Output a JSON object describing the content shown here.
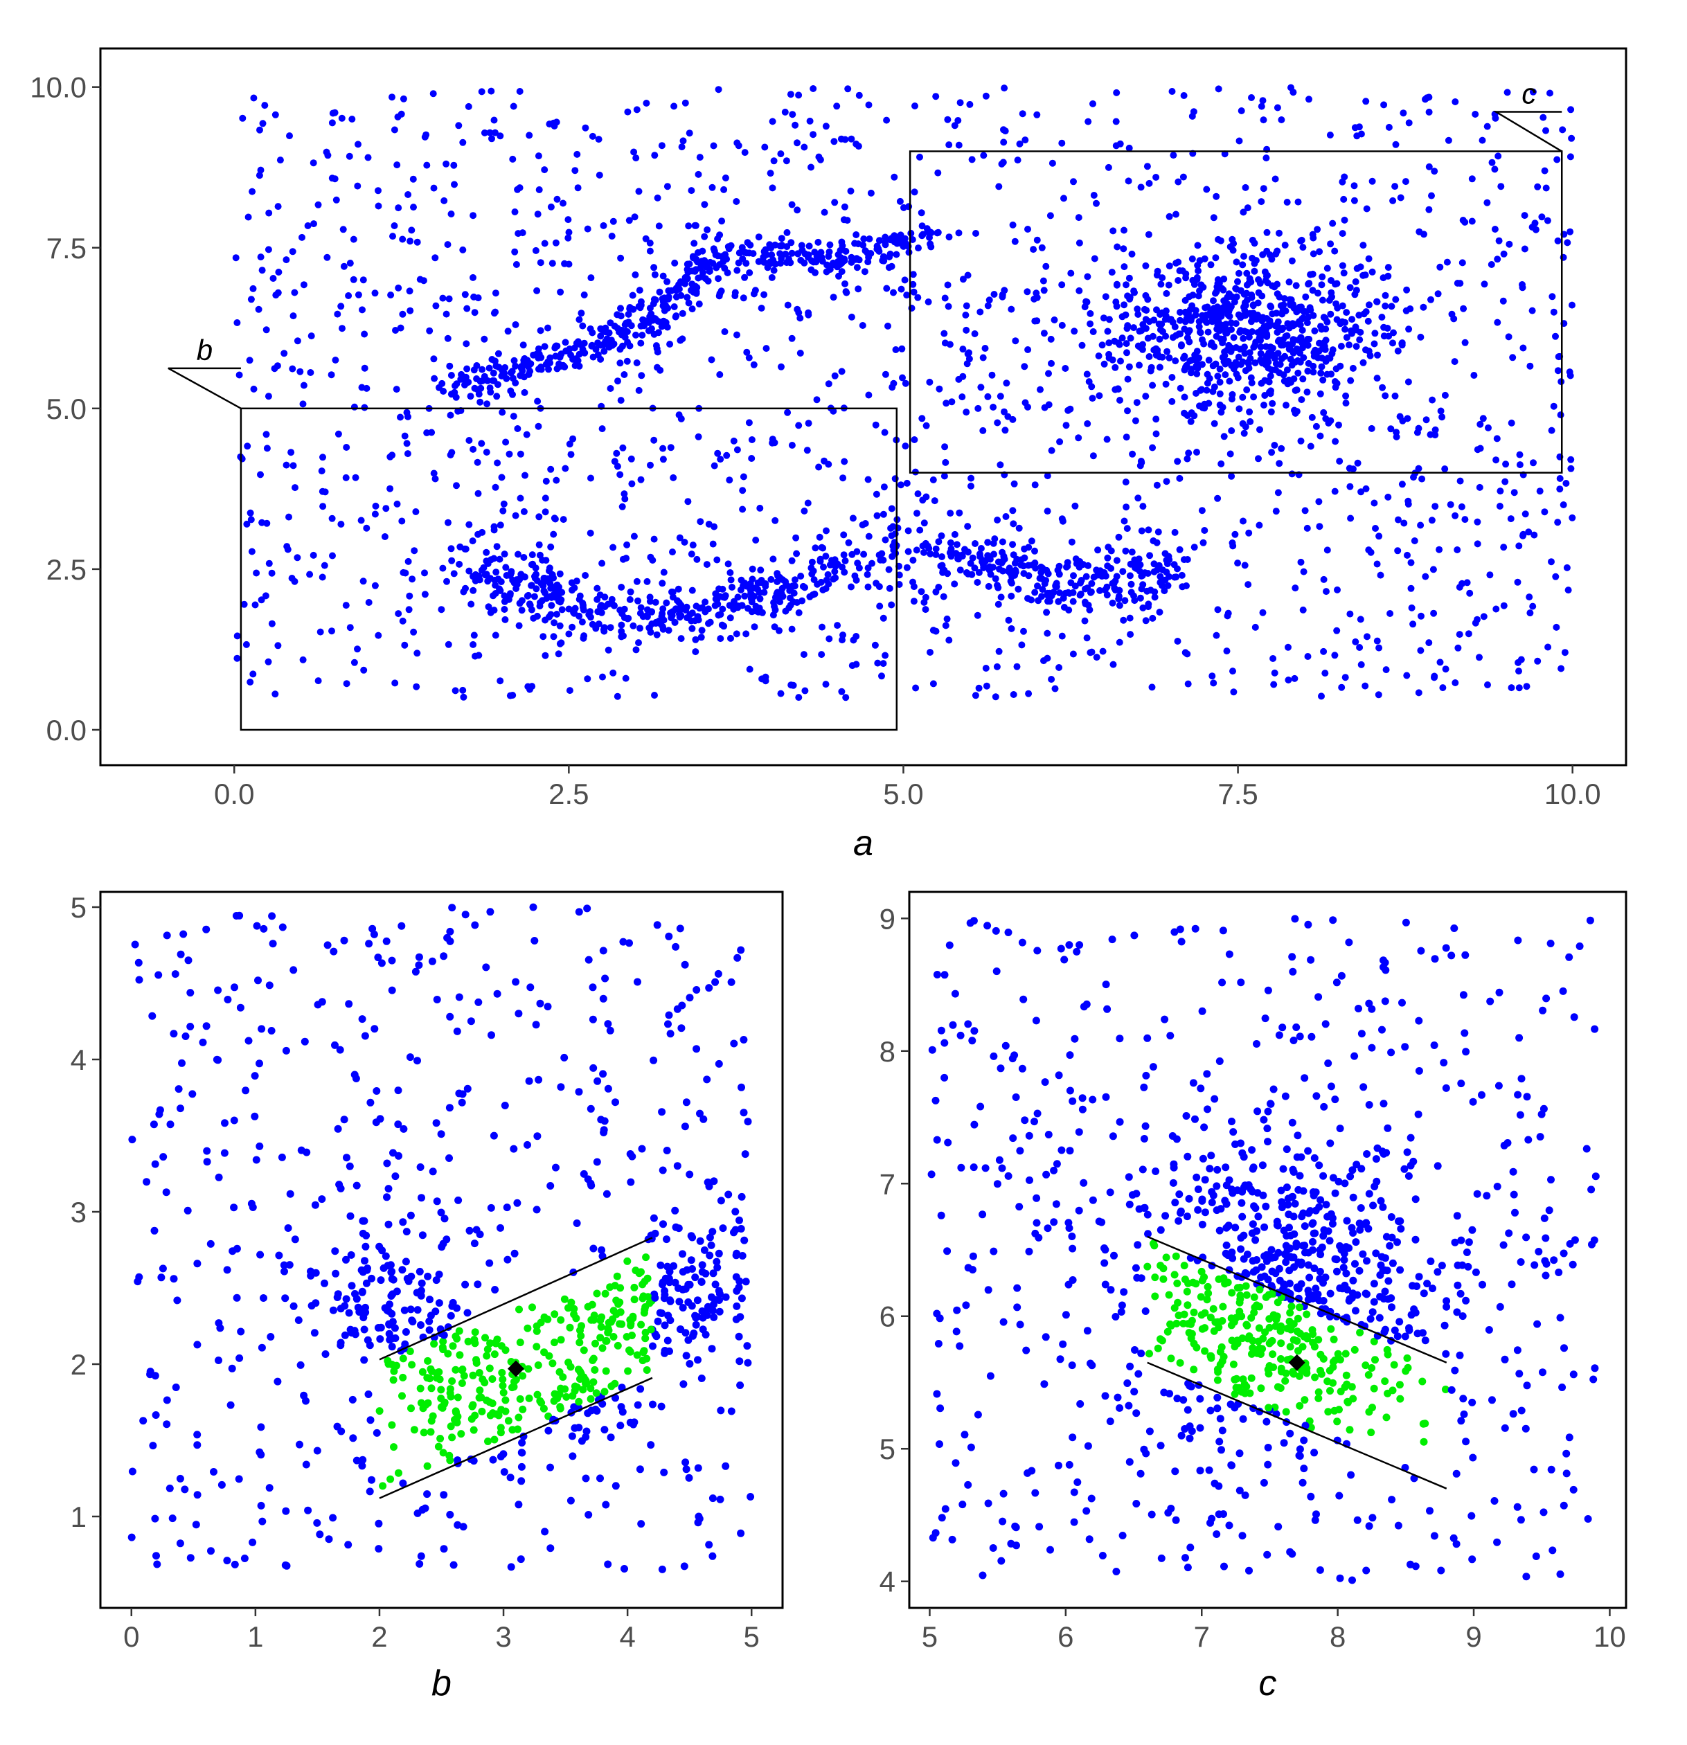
{
  "colors": {
    "points": "#0000ff",
    "neighbors": "#00ee00",
    "center": "#000000",
    "frame": "#000000",
    "tick_text": "#4d4d4d"
  },
  "chart_data": [
    {
      "id": "a",
      "type": "scatter",
      "xlabel": "a",
      "ylabel": "",
      "xlim": [
        -1.0,
        10.4
      ],
      "ylim": [
        -0.55,
        10.6
      ],
      "xticks": [
        0.0,
        2.5,
        5.0,
        7.5,
        10.0
      ],
      "yticks": [
        0.0,
        2.5,
        5.0,
        7.5,
        10.0
      ],
      "xtick_labels": [
        "0.0",
        "2.5",
        "5.0",
        "7.5",
        "10.0"
      ],
      "ytick_labels": [
        "0.0",
        "2.5",
        "5.0",
        "7.5",
        "10.0"
      ],
      "grid": false,
      "legend": "none",
      "regions": [
        {
          "label": "b",
          "x_range": [
            0.05,
            4.95
          ],
          "y_range": [
            0.0,
            5.0
          ]
        },
        {
          "label": "c",
          "x_range": [
            5.05,
            9.92
          ],
          "y_range": [
            4.0,
            9.0
          ]
        }
      ],
      "series": [
        {
          "role": "points",
          "point_count_approx": 3500,
          "structure": [
            {
              "kind": "background",
              "x_range": [
                0,
                10
              ],
              "y_range": [
                0.5,
                10
              ],
              "n_approx": 1600
            },
            {
              "kind": "curve",
              "path": [
                [
                  1.7,
                  5.3
                ],
                [
                  2.2,
                  5.7
                ],
                [
                  2.8,
                  6.0
                ],
                [
                  3.3,
                  6.7
                ],
                [
                  3.7,
                  7.45
                ],
                [
                  4.1,
                  7.35
                ],
                [
                  4.6,
                  7.3
                ],
                [
                  5.2,
                  7.75
                ]
              ],
              "spread": 0.12,
              "n_approx": 420
            },
            {
              "kind": "curve",
              "path": [
                [
                  1.8,
                  2.6
                ],
                [
                  2.6,
                  1.8
                ],
                [
                  3.2,
                  1.7
                ],
                [
                  3.8,
                  2.05
                ],
                [
                  4.4,
                  2.5
                ],
                [
                  5.0,
                  2.75
                ],
                [
                  5.6,
                  2.65
                ],
                [
                  6.2,
                  2.2
                ],
                [
                  6.6,
                  2.2
                ],
                [
                  7.0,
                  2.65
                ]
              ],
              "spread": 0.2,
              "n_approx": 650
            },
            {
              "kind": "cluster",
              "center": [
                7.6,
                6.2
              ],
              "sd": [
                0.55,
                0.6
              ],
              "n_approx": 650
            }
          ]
        }
      ]
    },
    {
      "id": "b",
      "type": "scatter",
      "xlabel": "b",
      "ylabel": "",
      "xlim": [
        -0.25,
        5.25
      ],
      "ylim": [
        0.4,
        5.1
      ],
      "xticks": [
        0,
        1,
        2,
        3,
        4,
        5
      ],
      "yticks": [
        1,
        2,
        3,
        4,
        5
      ],
      "xtick_labels": [
        "0",
        "1",
        "2",
        "3",
        "4",
        "5"
      ],
      "ytick_labels": [
        "1",
        "2",
        "3",
        "4",
        "5"
      ],
      "grid": false,
      "legend": "none",
      "center_point": [
        3.1,
        1.97
      ],
      "band": {
        "line_upper": [
          [
            2.0,
            2.03
          ],
          [
            4.2,
            2.83
          ]
        ],
        "line_lower": [
          [
            2.0,
            1.12
          ],
          [
            4.2,
            1.91
          ]
        ]
      },
      "series": [
        {
          "role": "points",
          "point_count_approx": 820
        },
        {
          "role": "neighbors",
          "point_count_approx": 380
        }
      ]
    },
    {
      "id": "c",
      "type": "scatter",
      "xlabel": "c",
      "ylabel": "",
      "xlim": [
        4.85,
        10.12
      ],
      "ylim": [
        3.8,
        9.2
      ],
      "xticks": [
        5,
        6,
        7,
        8,
        9,
        10
      ],
      "yticks": [
        4,
        5,
        6,
        7,
        8,
        9
      ],
      "xtick_labels": [
        "5",
        "6",
        "7",
        "8",
        "9",
        "10"
      ],
      "ytick_labels": [
        "4",
        "5",
        "6",
        "7",
        "8",
        "9"
      ],
      "grid": false,
      "legend": "none",
      "center_point": [
        7.7,
        5.65
      ],
      "band": {
        "line_upper": [
          [
            6.6,
            6.6
          ],
          [
            8.8,
            5.65
          ]
        ],
        "line_lower": [
          [
            6.6,
            5.65
          ],
          [
            8.8,
            4.7
          ]
        ]
      },
      "series": [
        {
          "role": "points",
          "point_count_approx": 900
        },
        {
          "role": "neighbors",
          "point_count_approx": 330
        }
      ]
    }
  ]
}
